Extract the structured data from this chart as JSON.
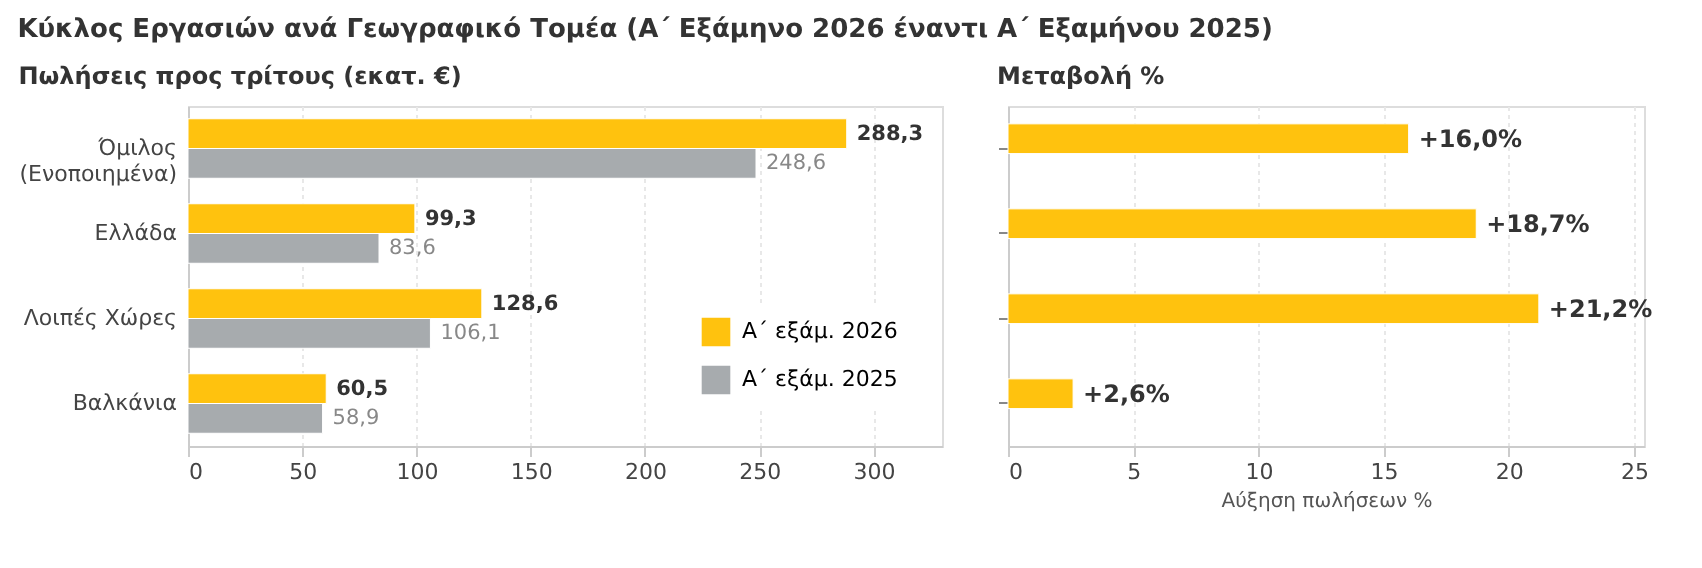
{
  "chart_data": [
    {
      "type": "bar",
      "orientation": "horizontal",
      "title": "Κύκλος Εργασιών ανά Γεωγραφικό Τομέα (Α΄ Εξάμηνο 2026 έναντι Α΄ Εξαμήνου 2025)",
      "subtitle": "Πωλήσεις προς τρίτους (εκατ. €)",
      "categories": [
        "Όμιλος\n(Ενοποιημένα)",
        "Ελλάδα",
        "Λοιπές Χώρες",
        "Βαλκάνια"
      ],
      "series": [
        {
          "name": "Α΄ εξάμ. 2026",
          "color": "#ffc20e",
          "values": [
            288.3,
            99.3,
            128.6,
            60.5
          ],
          "value_labels": [
            "288,3",
            "99,3",
            "128,6",
            "60,5"
          ]
        },
        {
          "name": "Α΄ εξάμ. 2025",
          "color": "#a7abae",
          "values": [
            248.6,
            83.6,
            106.1,
            58.9
          ],
          "value_labels": [
            "248,6",
            "83,6",
            "106,1",
            "58,9"
          ]
        }
      ],
      "xlim": [
        0,
        330
      ],
      "xticks": [
        0,
        50,
        100,
        150,
        200,
        250,
        300
      ],
      "grid": "x",
      "legend": "bottom right"
    },
    {
      "type": "bar",
      "orientation": "horizontal",
      "title": "Μεταβολή %",
      "xlabel": "Αύξηση πωλήσεων %",
      "categories": [
        null,
        null,
        null,
        null
      ],
      "series": [
        {
          "color": "#ffc20e",
          "values": [
            16.0,
            18.7,
            21.2,
            2.6
          ],
          "value_labels": [
            "+16,0%",
            "+18,7%",
            "+21,2%",
            "+2,6%"
          ]
        }
      ],
      "xlim": [
        0,
        25.4
      ],
      "xticks": [
        0,
        5,
        10,
        15,
        20,
        25
      ],
      "grid": "x"
    }
  ]
}
